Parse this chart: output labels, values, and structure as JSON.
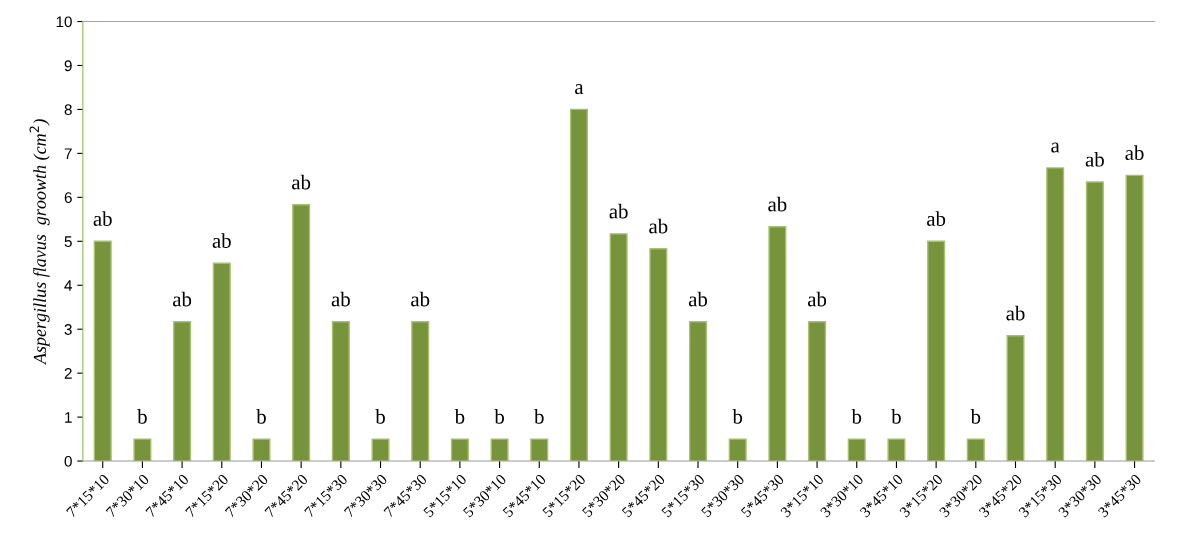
{
  "chart_data": {
    "type": "bar",
    "ylabel": "Aspergillus flavus  groowth (cm$^{2}$)",
    "categories": [
      "7*15*10",
      "7*30*10",
      "7*45*10",
      "7*15*20",
      "7*30*20",
      "7*45*20",
      "7*15*30",
      "7*30*30",
      "7*45*30",
      "5*15*10",
      "5*30*10",
      "5*45*10",
      "5*15*20",
      "5*30*20",
      "5*45*20",
      "5*15*30",
      "5*30*30",
      "5*45*30",
      "3*15*10",
      "3*30*10",
      "3*45*10",
      "3*15*20",
      "3*30*20",
      "3*45*20",
      "3*15*30",
      "3*30*30",
      "3*45*30"
    ],
    "values": [
      5.0,
      0.5,
      3.17,
      4.5,
      0.5,
      5.83,
      3.17,
      0.5,
      3.17,
      0.5,
      0.5,
      0.5,
      8.0,
      5.17,
      4.83,
      3.17,
      0.5,
      5.33,
      3.17,
      0.5,
      0.5,
      5.0,
      0.5,
      2.85,
      6.67,
      6.35,
      6.5
    ],
    "color": "#77933c",
    "ylim": [
      0,
      10
    ],
    "yticks": [
      0,
      1,
      2,
      3,
      4,
      5,
      6,
      7,
      8,
      9,
      10
    ],
    "grid": false,
    "legend": false,
    "annotations": [
      {
        "text": "ab",
        "x": "7*15*10",
        "y": 5.0
      },
      {
        "text": "b",
        "x": "7*30*10",
        "y": 0.5
      },
      {
        "text": "ab",
        "x": "7*45*10",
        "y": 3.17
      },
      {
        "text": "ab",
        "x": "7*15*20",
        "y": 4.5
      },
      {
        "text": "b",
        "x": "7*30*20",
        "y": 0.5
      },
      {
        "text": "ab",
        "x": "7*45*20",
        "y": 5.83
      },
      {
        "text": "ab",
        "x": "7*15*30",
        "y": 3.17
      },
      {
        "text": "b",
        "x": "7*30*30",
        "y": 0.5
      },
      {
        "text": "ab",
        "x": "7*45*30",
        "y": 3.17
      },
      {
        "text": "b",
        "x": "5*15*10",
        "y": 0.5
      },
      {
        "text": "b",
        "x": "5*30*10",
        "y": 0.5
      },
      {
        "text": "b",
        "x": "5*45*10",
        "y": 0.5
      },
      {
        "text": "a",
        "x": "5*15*20",
        "y": 8.0
      },
      {
        "text": "ab",
        "x": "5*30*20",
        "y": 5.17
      },
      {
        "text": "ab",
        "x": "5*45*20",
        "y": 4.83
      },
      {
        "text": "ab",
        "x": "5*15*30",
        "y": 3.17
      },
      {
        "text": "b",
        "x": "5*30*30",
        "y": 0.5
      },
      {
        "text": "ab",
        "x": "5*45*30",
        "y": 5.33
      },
      {
        "text": "ab",
        "x": "3*15*10",
        "y": 3.17
      },
      {
        "text": "b",
        "x": "3*30*10",
        "y": 0.5
      },
      {
        "text": "b",
        "x": "3*45*10",
        "y": 0.5
      },
      {
        "text": "ab",
        "x": "3*15*20",
        "y": 5.0
      },
      {
        "text": "b",
        "x": "3*30*20",
        "y": 0.5
      },
      {
        "text": "ab",
        "x": "3*45*20",
        "y": 2.85
      },
      {
        "text": "a",
        "x": "3*15*30",
        "y": 6.67
      },
      {
        "text": "ab",
        "x": "3*30*30",
        "y": 6.35
      },
      {
        "text": "ab",
        "x": "3*45*30",
        "y": 6.5
      }
    ]
  }
}
